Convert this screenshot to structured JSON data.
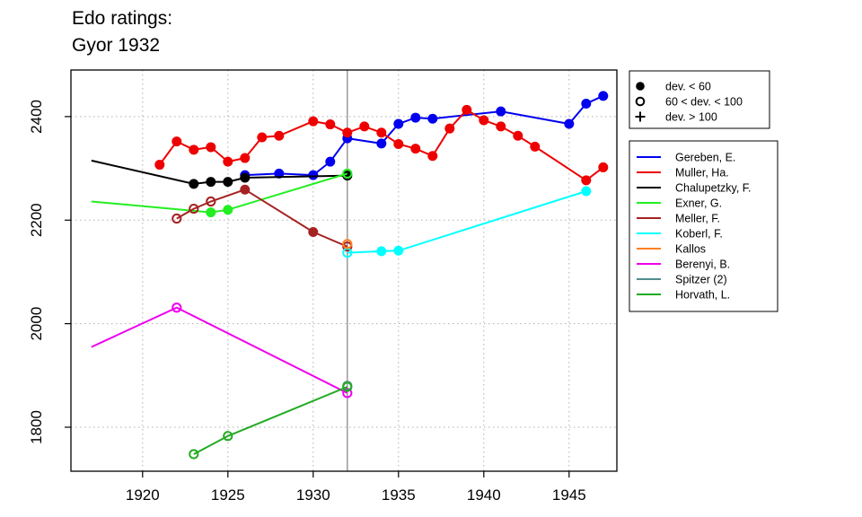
{
  "title_lines": [
    "Edo ratings:",
    "Gyor 1932"
  ],
  "chart_data": {
    "type": "line",
    "title": "Edo ratings: Gyor 1932",
    "xlabel": "",
    "ylabel": "",
    "xlim": [
      1915.8,
      1947.8
    ],
    "ylim": [
      1715,
      2490
    ],
    "x_ticks": [
      1920,
      1925,
      1930,
      1935,
      1940,
      1945
    ],
    "y_ticks": [
      1800,
      2000,
      2200,
      2400
    ],
    "grid": true,
    "reference_line_x": 1932,
    "symbol_legend": [
      {
        "symbol": "filled",
        "label": "dev. < 60"
      },
      {
        "symbol": "open",
        "label": "60 < dev. < 100"
      },
      {
        "symbol": "plus",
        "label": "dev. > 100"
      }
    ],
    "series": [
      {
        "name": "Gereben, E.",
        "color": "#0000ee",
        "points": [
          [
            1926,
            2287,
            "filled"
          ],
          [
            1928,
            2290,
            "filled"
          ],
          [
            1930,
            2287,
            "filled"
          ],
          [
            1931,
            2313,
            "filled"
          ],
          [
            1932,
            2358,
            "filled"
          ],
          [
            1934,
            2348,
            "filled"
          ],
          [
            1935,
            2386,
            "filled"
          ],
          [
            1936,
            2398,
            "filled"
          ],
          [
            1937,
            2396,
            "filled"
          ],
          [
            1941,
            2410,
            "filled"
          ],
          [
            1945,
            2386,
            "filled"
          ],
          [
            1946,
            2425,
            "filled"
          ],
          [
            1947,
            2440,
            "filled"
          ]
        ]
      },
      {
        "name": "Muller, Ha.",
        "color": "#ee0000",
        "points": [
          [
            1921,
            2307,
            "filled"
          ],
          [
            1922,
            2352,
            "filled"
          ],
          [
            1923,
            2336,
            "filled"
          ],
          [
            1924,
            2341,
            "filled"
          ],
          [
            1925,
            2313,
            "filled"
          ],
          [
            1926,
            2320,
            "filled"
          ],
          [
            1927,
            2360,
            "filled"
          ],
          [
            1928,
            2363,
            "filled"
          ],
          [
            1930,
            2391,
            "filled"
          ],
          [
            1931,
            2385,
            "filled"
          ],
          [
            1932,
            2369,
            "filled"
          ],
          [
            1933,
            2381,
            "filled"
          ],
          [
            1934,
            2369,
            "filled"
          ],
          [
            1935,
            2347,
            "filled"
          ],
          [
            1936,
            2338,
            "filled"
          ],
          [
            1937,
            2324,
            "filled"
          ],
          [
            1938,
            2377,
            "filled"
          ],
          [
            1939,
            2413,
            "filled"
          ],
          [
            1940,
            2393,
            "filled"
          ],
          [
            1941,
            2381,
            "filled"
          ],
          [
            1942,
            2363,
            "filled"
          ],
          [
            1943,
            2342,
            "filled"
          ],
          [
            1946,
            2277,
            "filled"
          ],
          [
            1947,
            2302,
            "filled"
          ]
        ]
      },
      {
        "name": "Chalupetzky, F.",
        "color": "#000000",
        "points": [
          [
            1917,
            2315,
            "none"
          ],
          [
            1923,
            2270,
            "filled"
          ],
          [
            1924,
            2274,
            "filled"
          ],
          [
            1925,
            2274,
            "filled"
          ],
          [
            1926,
            2282,
            "filled"
          ],
          [
            1932,
            2286,
            "filled"
          ]
        ]
      },
      {
        "name": "Exner, G.",
        "color": "#22ee22",
        "points": [
          [
            1917,
            2236,
            "none"
          ],
          [
            1924,
            2215,
            "filled"
          ],
          [
            1925,
            2220,
            "filled"
          ],
          [
            1932,
            2290,
            "open"
          ]
        ]
      },
      {
        "name": "Meller, F.",
        "color": "#a52222",
        "points": [
          [
            1922,
            2203,
            "open"
          ],
          [
            1923,
            2222,
            "open"
          ],
          [
            1924,
            2236,
            "open"
          ],
          [
            1926,
            2259,
            "filled"
          ],
          [
            1930,
            2177,
            "filled"
          ],
          [
            1932,
            2149,
            "open"
          ]
        ]
      },
      {
        "name": "Koberl, F.",
        "color": "#00ffff",
        "points": [
          [
            1932,
            2137,
            "open"
          ],
          [
            1934,
            2140,
            "filled"
          ],
          [
            1935,
            2141,
            "filled"
          ],
          [
            1946,
            2256,
            "filled"
          ]
        ]
      },
      {
        "name": "Kallos",
        "color": "#ff7f24",
        "points": [
          [
            1932,
            2154,
            "open"
          ]
        ]
      },
      {
        "name": "Berenyi, B.",
        "color": "#ee00ee",
        "points": [
          [
            1917,
            1955,
            "none"
          ],
          [
            1922,
            2031,
            "open"
          ],
          [
            1932,
            1866,
            "open"
          ]
        ]
      },
      {
        "name": "Spitzer (2)",
        "color": "#528b8b",
        "points": [
          [
            1932,
            1880,
            "open"
          ]
        ]
      },
      {
        "name": "Horvath, L.",
        "color": "#22aa22",
        "points": [
          [
            1923,
            1748,
            "open"
          ],
          [
            1925,
            1783,
            "open"
          ],
          [
            1932,
            1878,
            "open"
          ]
        ]
      }
    ]
  }
}
